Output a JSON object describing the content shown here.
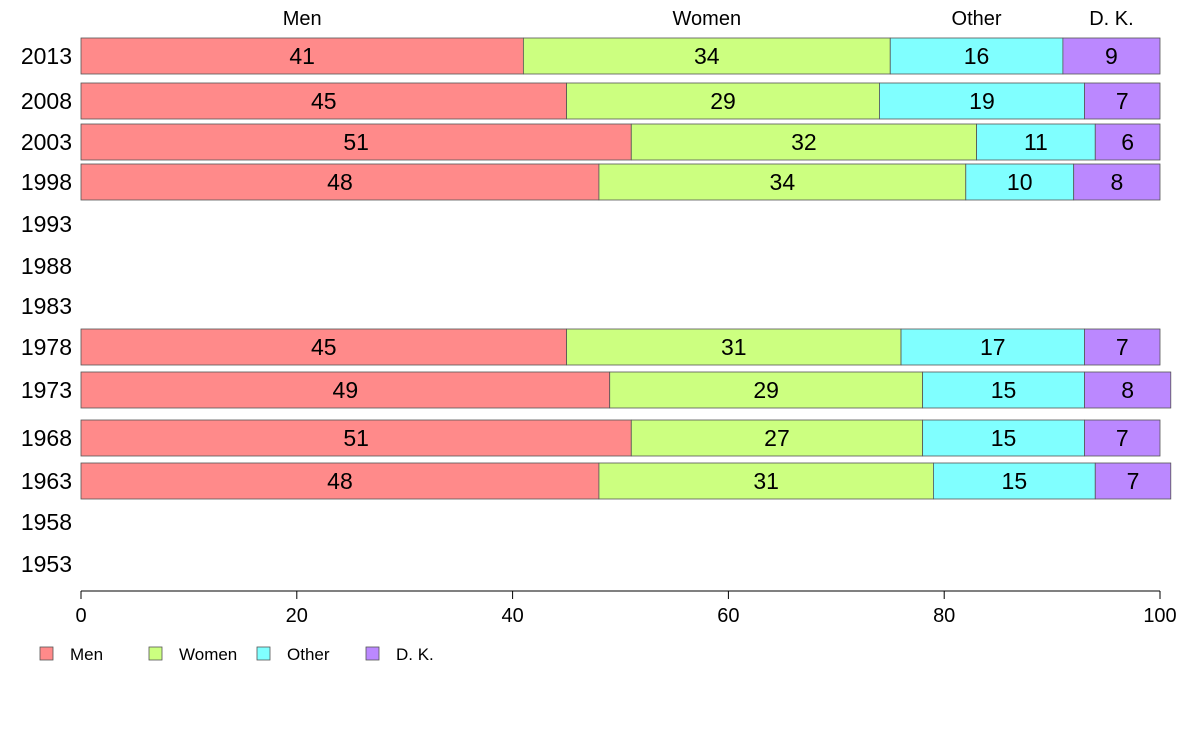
{
  "chart_data": {
    "type": "bar",
    "orientation": "horizontal",
    "stacked": true,
    "categories": [
      "2013",
      "2008",
      "2003",
      "1998",
      "1993",
      "1988",
      "1983",
      "1978",
      "1973",
      "1968",
      "1963",
      "1958",
      "1953"
    ],
    "series": [
      {
        "name": "Men",
        "color": "#ff8a8a",
        "values": [
          41,
          45,
          51,
          48,
          null,
          null,
          null,
          45,
          49,
          51,
          48,
          null,
          null
        ]
      },
      {
        "name": "Women",
        "color": "#ccff80",
        "values": [
          34,
          29,
          32,
          34,
          null,
          null,
          null,
          31,
          29,
          27,
          31,
          null,
          null
        ]
      },
      {
        "name": "Other",
        "color": "#80ffff",
        "values": [
          16,
          19,
          11,
          10,
          null,
          null,
          null,
          17,
          15,
          15,
          15,
          null,
          null
        ]
      },
      {
        "name": "D. K.",
        "color": "#bb88ff",
        "values": [
          9,
          7,
          6,
          8,
          null,
          null,
          null,
          7,
          8,
          7,
          7,
          null,
          null
        ]
      }
    ],
    "xlim": [
      0,
      100
    ],
    "x_ticks": [
      "0",
      "20",
      "40",
      "60",
      "80",
      "100"
    ],
    "title": "",
    "xlabel": "",
    "ylabel": "",
    "legend_position": "bottom-left",
    "series_labels_top": [
      "Men",
      "Women",
      "Other",
      "D. K."
    ],
    "grid": false
  }
}
